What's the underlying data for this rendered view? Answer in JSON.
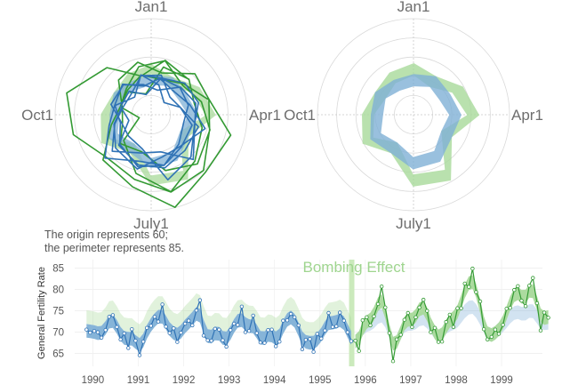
{
  "chart_data": {
    "type": "line",
    "polar": {
      "month_labels": [
        "Jan1",
        "Apr1",
        "July1",
        "Oct1"
      ],
      "note_line1": "The origin represents 60;",
      "note_line2": "the perimeter represents 85.",
      "r_min": 60,
      "r_max": 85,
      "grid_levels": [
        65,
        70,
        75,
        80,
        85
      ]
    },
    "timeseries": {
      "ylabel": "General Fertility Rate",
      "annotation": "Bombing Effect",
      "bombing_date": 1995.8,
      "ylim": [
        62,
        87
      ],
      "xlim": [
        1989.7,
        2000.0
      ],
      "y_ticks": [
        65,
        70,
        75,
        80,
        85
      ],
      "x_ticks": [
        {
          "value": 1990.1,
          "label": "1990"
        },
        {
          "value": 1991.1,
          "label": "1991"
        },
        {
          "value": 1992.1,
          "label": "1992"
        },
        {
          "value": 1993.1,
          "label": "1993"
        },
        {
          "value": 1994.1,
          "label": "1994"
        },
        {
          "value": 1995.1,
          "label": "1995"
        },
        {
          "value": 1996.1,
          "label": "1996"
        },
        {
          "value": 1997.1,
          "label": "1997"
        },
        {
          "value": 1998.1,
          "label": "1998"
        },
        {
          "value": 1999.1,
          "label": "1999"
        }
      ],
      "colors": {
        "pre": "#2f72b5",
        "post": "#339a33",
        "pre_band": "#7fb0d6",
        "post_band": "#a8d99a",
        "bomb_band": "#cbeabc"
      },
      "observed": [
        [
          1989.96,
          70.6
        ],
        [
          1990.04,
          69.9
        ],
        [
          1990.13,
          70.3
        ],
        [
          1990.21,
          70.0
        ],
        [
          1990.29,
          68.7
        ],
        [
          1990.38,
          70.5
        ],
        [
          1990.46,
          73.6
        ],
        [
          1990.54,
          74.0
        ],
        [
          1990.63,
          71.2
        ],
        [
          1990.71,
          68.3
        ],
        [
          1990.79,
          69.7
        ],
        [
          1990.88,
          66.3
        ],
        [
          1990.96,
          70.7
        ],
        [
          1991.04,
          68.0
        ],
        [
          1991.13,
          64.6
        ],
        [
          1991.21,
          67.8
        ],
        [
          1991.29,
          71.0
        ],
        [
          1991.38,
          71.5
        ],
        [
          1991.46,
          73.6
        ],
        [
          1991.54,
          72.5
        ],
        [
          1991.63,
          76.5
        ],
        [
          1991.71,
          71.3
        ],
        [
          1991.79,
          69.8
        ],
        [
          1991.88,
          70.9
        ],
        [
          1991.96,
          67.7
        ],
        [
          1992.04,
          69.9
        ],
        [
          1992.13,
          72.0
        ],
        [
          1992.21,
          72.7
        ],
        [
          1992.29,
          71.6
        ],
        [
          1992.38,
          75.1
        ],
        [
          1992.46,
          77.5
        ],
        [
          1992.54,
          69.2
        ],
        [
          1992.63,
          68.1
        ],
        [
          1992.71,
          68.0
        ],
        [
          1992.79,
          70.8
        ],
        [
          1992.88,
          70.6
        ],
        [
          1992.96,
          68.1
        ],
        [
          1993.04,
          66.6
        ],
        [
          1993.13,
          70.5
        ],
        [
          1993.21,
          72.0
        ],
        [
          1993.29,
          71.7
        ],
        [
          1993.38,
          76.0
        ],
        [
          1993.46,
          70.0
        ],
        [
          1993.54,
          70.3
        ],
        [
          1993.63,
          73.9
        ],
        [
          1993.71,
          69.8
        ],
        [
          1993.79,
          67.6
        ],
        [
          1993.88,
          67.5
        ],
        [
          1993.96,
          70.5
        ],
        [
          1994.04,
          70.6
        ],
        [
          1994.13,
          66.7
        ],
        [
          1994.21,
          67.8
        ],
        [
          1994.29,
          72.7
        ],
        [
          1994.38,
          72.8
        ],
        [
          1994.46,
          74.3
        ],
        [
          1994.54,
          73.5
        ],
        [
          1994.63,
          71.6
        ],
        [
          1994.71,
          66.0
        ],
        [
          1994.79,
          68.2
        ],
        [
          1994.88,
          68.4
        ],
        [
          1994.96,
          65.4
        ],
        [
          1995.04,
          69.6
        ],
        [
          1995.13,
          68.5
        ],
        [
          1995.21,
          70.4
        ],
        [
          1995.29,
          74.5
        ],
        [
          1995.38,
          71.2
        ],
        [
          1995.46,
          71.4
        ],
        [
          1995.54,
          74.6
        ],
        [
          1995.63,
          72.7
        ],
        [
          1995.71,
          70.0
        ],
        [
          1995.79,
          67.9
        ],
        [
          1995.88,
          68.0
        ],
        [
          1995.96,
          65.6
        ],
        [
          1996.04,
          72.8
        ],
        [
          1996.13,
          73.5
        ],
        [
          1996.21,
          71.6
        ],
        [
          1996.29,
          73.7
        ],
        [
          1996.38,
          76.6
        ],
        [
          1996.46,
          80.7
        ],
        [
          1996.54,
          75.8
        ],
        [
          1996.63,
          69.8
        ],
        [
          1996.71,
          63.2
        ],
        [
          1996.79,
          68.3
        ],
        [
          1996.88,
          69.4
        ],
        [
          1996.96,
          72.9
        ],
        [
          1997.04,
          74.5
        ],
        [
          1997.13,
          71.2
        ],
        [
          1997.21,
          73.5
        ],
        [
          1997.29,
          75.8
        ],
        [
          1997.38,
          77.6
        ],
        [
          1997.46,
          75.0
        ],
        [
          1997.54,
          70.0
        ],
        [
          1997.63,
          71.0
        ],
        [
          1997.71,
          67.7
        ],
        [
          1997.79,
          67.8
        ],
        [
          1997.88,
          72.4
        ],
        [
          1997.96,
          74.1
        ],
        [
          1998.04,
          71.2
        ],
        [
          1998.13,
          75.6
        ],
        [
          1998.21,
          75.6
        ],
        [
          1998.29,
          81.4
        ],
        [
          1998.38,
          80.6
        ],
        [
          1998.46,
          84.9
        ],
        [
          1998.54,
          79.4
        ],
        [
          1998.63,
          77.2
        ],
        [
          1998.71,
          70.7
        ],
        [
          1998.79,
          68.3
        ],
        [
          1998.88,
          68.9
        ],
        [
          1998.96,
          70.6
        ],
        [
          1999.04,
          69.6
        ],
        [
          1999.13,
          71.7
        ],
        [
          1999.21,
          75.5
        ],
        [
          1999.29,
          75.7
        ],
        [
          1999.38,
          79.9
        ],
        [
          1999.46,
          80.8
        ],
        [
          1999.54,
          77.4
        ],
        [
          1999.63,
          76.1
        ],
        [
          1999.71,
          80.9
        ],
        [
          1999.79,
          82.7
        ],
        [
          1999.88,
          76.8
        ],
        [
          1999.96,
          70.4
        ],
        [
          2000.04,
          74.6
        ],
        [
          2000.13,
          73.4
        ]
      ]
    }
  }
}
